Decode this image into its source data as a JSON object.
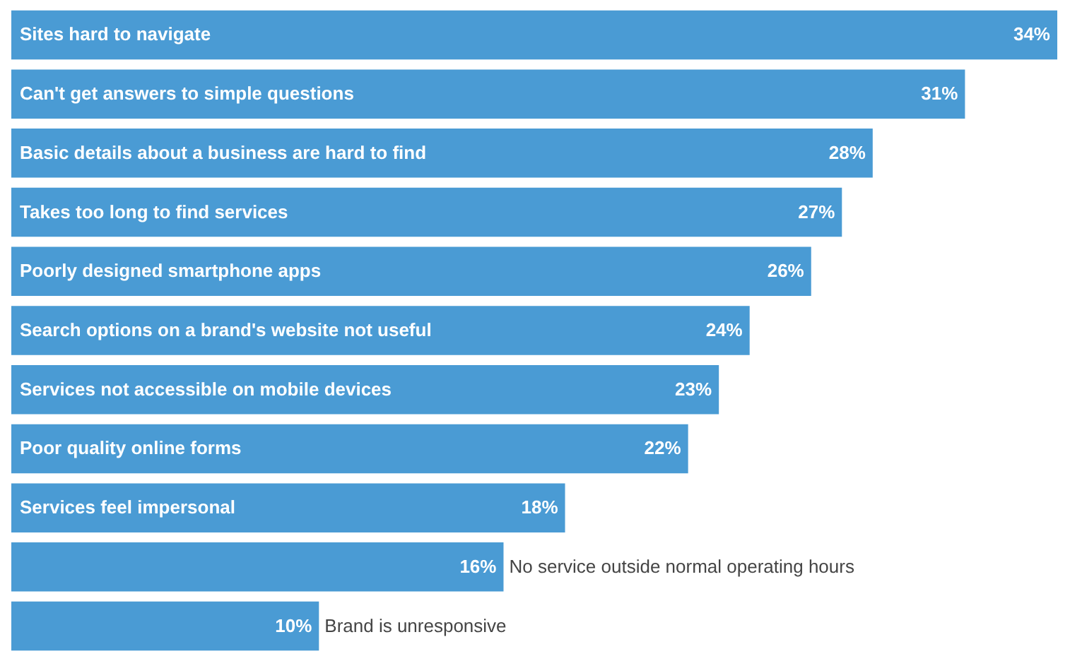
{
  "chart_data": {
    "type": "bar",
    "orientation": "horizontal",
    "categories": [
      "Sites hard to navigate",
      "Can't get answers to simple questions",
      "Basic details about a business are hard to find",
      "Takes too long to find services",
      "Poorly designed smartphone apps",
      "Search options on a brand's website not useful",
      "Services not accessible on mobile devices",
      "Poor quality online forms",
      "Services feel impersonal",
      "No service outside normal operating hours",
      "Brand is unresponsive"
    ],
    "values": [
      34,
      31,
      28,
      27,
      26,
      24,
      23,
      22,
      18,
      16,
      10
    ],
    "value_labels": [
      "34%",
      "31%",
      "28%",
      "27%",
      "26%",
      "24%",
      "23%",
      "22%",
      "18%",
      "16%",
      "10%"
    ],
    "color": "#4a9bd4"
  }
}
